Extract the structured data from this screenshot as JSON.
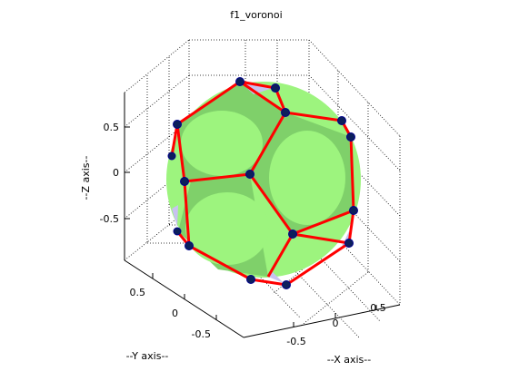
{
  "chart_data": {
    "type": "scatter",
    "title": "f1_voronoi",
    "xlabel": "--X axis--",
    "ylabel": "--Y axis--",
    "zlabel": "--Z axis--",
    "xticks": [
      "-0.5",
      "0",
      "0.5"
    ],
    "yticks": [
      "0.5",
      "0",
      "-0.5"
    ],
    "zticks": [
      "0.5",
      "0",
      "-0.5"
    ],
    "xlim": [
      -0.9,
      0.9
    ],
    "ylim": [
      -0.9,
      0.9
    ],
    "zlim": [
      -0.9,
      0.9
    ],
    "grid": true,
    "view": "3d dodecahedral voronoi tessellation of unit sphere",
    "sphere_color": "#99f27a",
    "sphere_shade_color": "#7fcf66",
    "edge_color": "#ff0000",
    "vertex_color": "#0c1f5c"
  }
}
